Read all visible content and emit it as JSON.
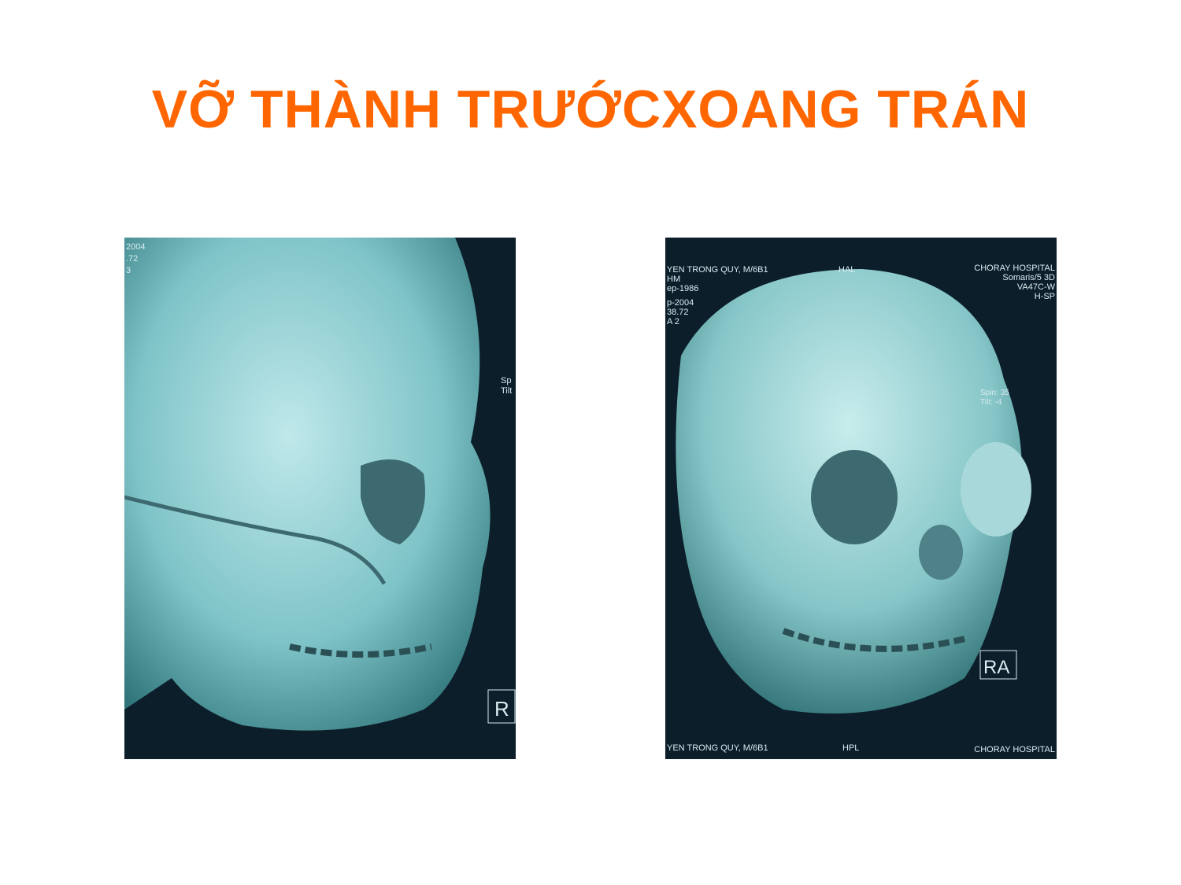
{
  "slide": {
    "title": "VỠ THÀNH TRƯỚCXOANG TRÁN",
    "images": [
      {
        "overlay_texts": [
          "2004",
          ".72",
          "3",
          "Sp",
          "Tilt",
          "R"
        ]
      },
      {
        "overlay_texts": [
          "YEN TRONG QUY, M/6B1",
          "HAL",
          "CHORAY HOSPITAL",
          "Somaris/5 3D",
          "VA47C-W",
          "H-SP",
          "HM",
          "ep-1986",
          "p-2004",
          "38.72",
          "A 2",
          "Spin:  35",
          "Tilt:  -4",
          "RA",
          "YEN TRONG QUY, M/6B1",
          "HPL",
          "CHORAY HOSPITAL"
        ]
      }
    ]
  }
}
